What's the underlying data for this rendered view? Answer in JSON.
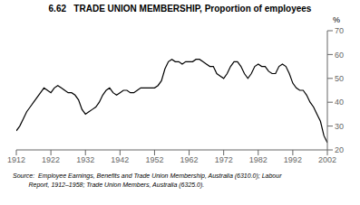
{
  "chart_data": {
    "type": "line",
    "title": "6.62   TRADE UNION MEMBERSHIP, Proportion of employees",
    "y_label": "%",
    "annotations": [
      "Source:  Employee Earnings, Benefits and Trade Union Membership, Australia (6310.0); Labour",
      "         Report, 1912–1958; Trade Union Members, Australia (6325.0)."
    ],
    "x": [
      1912,
      1913,
      1914,
      1915,
      1916,
      1917,
      1918,
      1919,
      1920,
      1921,
      1922,
      1923,
      1924,
      1925,
      1926,
      1927,
      1928,
      1929,
      1930,
      1931,
      1932,
      1933,
      1934,
      1935,
      1936,
      1937,
      1938,
      1939,
      1940,
      1941,
      1942,
      1943,
      1944,
      1945,
      1946,
      1947,
      1948,
      1949,
      1950,
      1951,
      1952,
      1953,
      1954,
      1955,
      1956,
      1957,
      1958,
      1959,
      1960,
      1961,
      1962,
      1963,
      1964,
      1965,
      1966,
      1967,
      1968,
      1969,
      1970,
      1971,
      1972,
      1973,
      1974,
      1975,
      1976,
      1977,
      1978,
      1979,
      1980,
      1981,
      1982,
      1983,
      1984,
      1985,
      1986,
      1987,
      1988,
      1989,
      1990,
      1991,
      1992,
      1993,
      1994,
      1995,
      1996,
      1997,
      1998,
      1999,
      2000,
      2001,
      2002
    ],
    "values": [
      28,
      30,
      33,
      36,
      38,
      40,
      42,
      44,
      46,
      45,
      44,
      46,
      47,
      46,
      45,
      44,
      44,
      43,
      41,
      37,
      35,
      36,
      37,
      38,
      40,
      43,
      45,
      46,
      44,
      43,
      44,
      45,
      45,
      44,
      44,
      45,
      46,
      46,
      46,
      46,
      46,
      47,
      49,
      54,
      57,
      58,
      57,
      57,
      56,
      57,
      57,
      57,
      58,
      58,
      57,
      56,
      55,
      55,
      52,
      51,
      50,
      52,
      55,
      57,
      57,
      55,
      52,
      50,
      52,
      55,
      56,
      55,
      55,
      53,
      52,
      52,
      55,
      56,
      55,
      52,
      48,
      46,
      45,
      45,
      43,
      40,
      38,
      35,
      32,
      26,
      23
    ],
    "color": "#000000",
    "xlim": [
      1912,
      2002
    ],
    "ylim": [
      20,
      70
    ],
    "xticks": [
      1912,
      1922,
      1932,
      1942,
      1952,
      1962,
      1972,
      1982,
      1992,
      2002
    ],
    "yticks": [
      20,
      30,
      40,
      50,
      60,
      70
    ],
    "grid": false
  }
}
